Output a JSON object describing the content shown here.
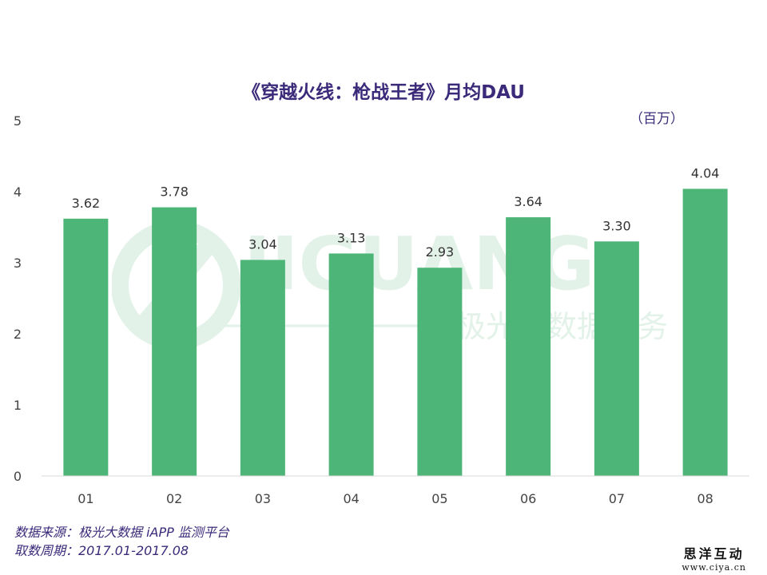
{
  "chart_data": {
    "type": "bar",
    "title": "《穿越火线：枪战王者》月均DAU",
    "unit": "（百万）",
    "categories": [
      "01",
      "02",
      "03",
      "04",
      "05",
      "06",
      "07",
      "08"
    ],
    "values": [
      3.62,
      3.78,
      3.04,
      3.13,
      2.93,
      3.64,
      3.3,
      4.04
    ],
    "value_labels": [
      "3.62",
      "3.78",
      "3.04",
      "3.13",
      "2.93",
      "3.64",
      "3.30",
      "4.04"
    ],
    "yticks": [
      0,
      1,
      2,
      3,
      4,
      5
    ],
    "ylim": [
      0,
      5
    ],
    "bar_color": "#4db577",
    "grid": false
  },
  "watermark": {
    "text": "JIGUANG",
    "subtitle": "极光大数据服务"
  },
  "footer": {
    "source": "数据来源：极光大数据 iAPP 监测平台",
    "period": "取数周期：2017.01-2017.08"
  },
  "brand": {
    "name": "思洋互动",
    "url": "www.ciya.cn"
  }
}
